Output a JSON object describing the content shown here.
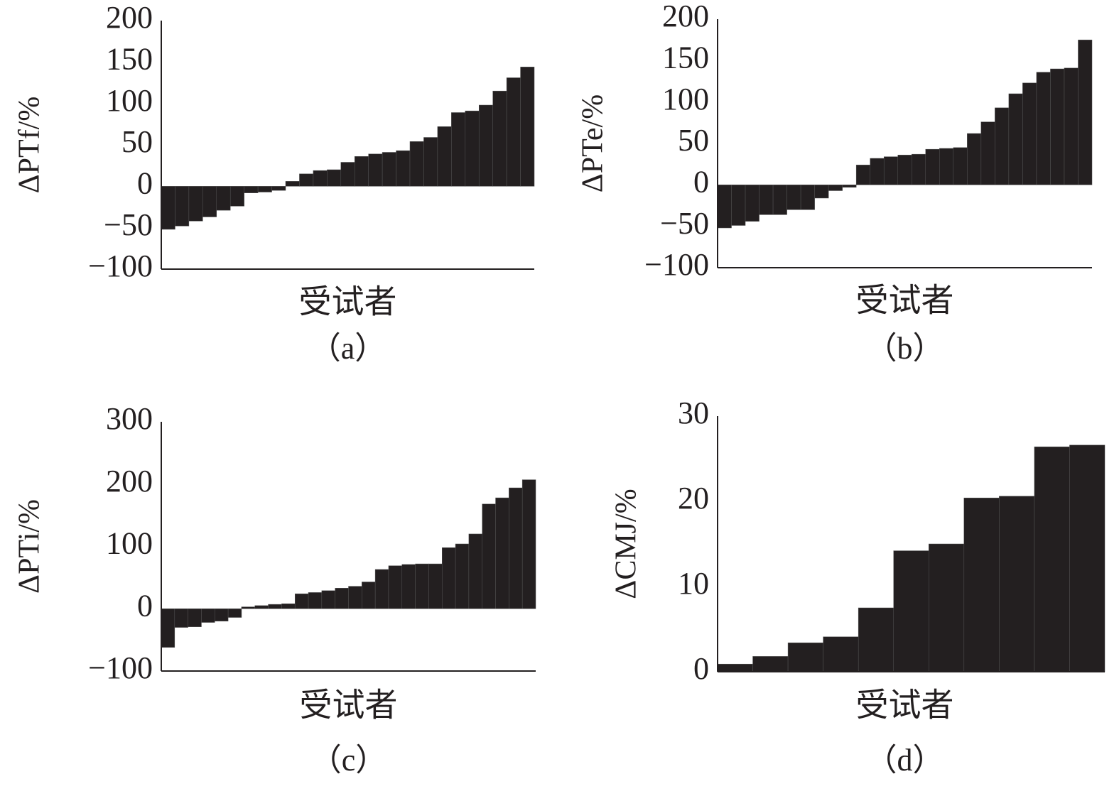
{
  "chart_data": [
    {
      "type": "bar",
      "ylabel": "ΔPTf/%",
      "xlabel": "受试者",
      "caption": "（a）",
      "color": "#231f20",
      "values": [
        -52,
        -48,
        -42,
        -37,
        -29,
        -24,
        -8,
        -7,
        -5,
        6,
        15,
        19,
        20,
        29,
        36,
        39,
        41,
        43,
        54,
        59,
        72,
        89,
        91,
        98,
        115,
        131,
        144
      ],
      "ylim": [
        -100,
        200
      ],
      "yticks": [
        {
          "value": -100,
          "label": "−100"
        },
        {
          "value": -50,
          "label": "−50"
        },
        0,
        50,
        100,
        150,
        200
      ]
    },
    {
      "type": "bar",
      "ylabel": "ΔPTe/%",
      "xlabel": "受试者",
      "caption": "（b）",
      "color": "#231f20",
      "values": [
        -52,
        -49,
        -44,
        -36,
        -36,
        -30,
        -30,
        -16,
        -7,
        -3,
        24,
        32,
        34,
        36,
        37,
        43,
        44,
        45,
        62,
        76,
        93,
        110,
        123,
        136,
        140,
        141,
        175
      ],
      "ylim": [
        -100,
        200
      ],
      "yticks": [
        {
          "value": -100,
          "label": "−100"
        },
        {
          "value": -50,
          "label": "−50"
        },
        0,
        50,
        100,
        150,
        200
      ]
    },
    {
      "type": "bar",
      "ylabel": "ΔPTi/%",
      "xlabel": "受试者",
      "caption": "（c）",
      "color": "#231f20",
      "values": [
        -62,
        -30,
        -29,
        -22,
        -20,
        -14,
        3,
        5,
        7,
        8,
        24,
        26,
        29,
        33,
        36,
        43,
        63,
        69,
        71,
        72,
        72,
        98,
        104,
        120,
        168,
        178,
        194,
        207
      ],
      "ylim": [
        -100,
        300
      ],
      "yticks": [
        {
          "value": -100,
          "label": "−100"
        },
        0,
        100,
        200,
        300
      ]
    },
    {
      "type": "bar",
      "ylabel": "ΔCMJ/%",
      "xlabel": "受试者",
      "caption": "（d）",
      "color": "#231f20",
      "values": [
        0.9,
        1.8,
        3.4,
        4.1,
        7.5,
        14.2,
        15.0,
        20.4,
        20.6,
        26.4,
        26.6
      ],
      "ylim": [
        0,
        30
      ],
      "yticks": [
        0,
        10,
        20,
        30
      ]
    }
  ]
}
